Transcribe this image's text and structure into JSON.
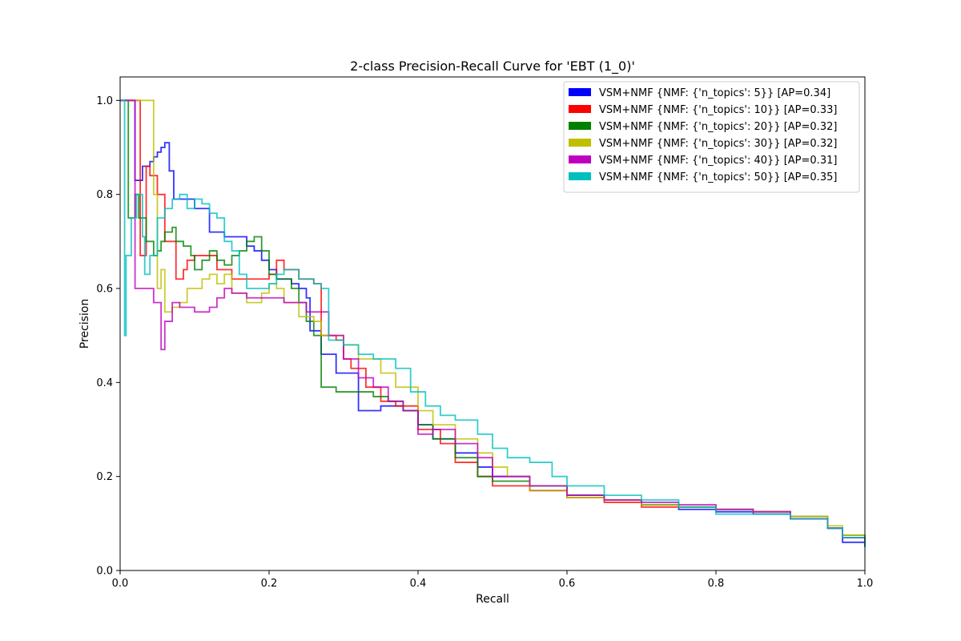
{
  "chart_data": {
    "type": "line",
    "title": "2-class Precision-Recall Curve for 'EBT (1_0)'",
    "xlabel": "Recall",
    "ylabel": "Precision",
    "xlim": [
      0.0,
      1.0
    ],
    "ylim": [
      0.0,
      1.05
    ],
    "xticks": [
      "0.0",
      "0.2",
      "0.4",
      "0.6",
      "0.8",
      "1.0"
    ],
    "yticks": [
      "0.0",
      "0.2",
      "0.4",
      "0.6",
      "0.8",
      "1.0"
    ],
    "grid": false,
    "legend_position": "top-right",
    "series": [
      {
        "name": "VSM+NMF {NMF: {'n_topics': 5}} [AP=0.34]",
        "color": "#0000ff",
        "points": [
          [
            0.0,
            1.0
          ],
          [
            0.02,
            1.0
          ],
          [
            0.02,
            0.83
          ],
          [
            0.03,
            0.83
          ],
          [
            0.03,
            0.86
          ],
          [
            0.04,
            0.86
          ],
          [
            0.04,
            0.87
          ],
          [
            0.045,
            0.88
          ],
          [
            0.05,
            0.89
          ],
          [
            0.055,
            0.9
          ],
          [
            0.06,
            0.9
          ],
          [
            0.06,
            0.91
          ],
          [
            0.066,
            0.91
          ],
          [
            0.066,
            0.85
          ],
          [
            0.072,
            0.85
          ],
          [
            0.072,
            0.79
          ],
          [
            0.09,
            0.79
          ],
          [
            0.1,
            0.77
          ],
          [
            0.12,
            0.76
          ],
          [
            0.12,
            0.72
          ],
          [
            0.14,
            0.72
          ],
          [
            0.14,
            0.71
          ],
          [
            0.17,
            0.69
          ],
          [
            0.18,
            0.68
          ],
          [
            0.19,
            0.67
          ],
          [
            0.19,
            0.66
          ],
          [
            0.2,
            0.64
          ],
          [
            0.21,
            0.62
          ],
          [
            0.23,
            0.61
          ],
          [
            0.24,
            0.6
          ],
          [
            0.25,
            0.6
          ],
          [
            0.25,
            0.58
          ],
          [
            0.255,
            0.58
          ],
          [
            0.255,
            0.51
          ],
          [
            0.27,
            0.51
          ],
          [
            0.27,
            0.46
          ],
          [
            0.29,
            0.46
          ],
          [
            0.29,
            0.42
          ],
          [
            0.31,
            0.42
          ],
          [
            0.32,
            0.41
          ],
          [
            0.32,
            0.34
          ],
          [
            0.35,
            0.35
          ],
          [
            0.37,
            0.35
          ],
          [
            0.38,
            0.34
          ],
          [
            0.4,
            0.31
          ],
          [
            0.42,
            0.28
          ],
          [
            0.45,
            0.25
          ],
          [
            0.48,
            0.22
          ],
          [
            0.5,
            0.2
          ],
          [
            0.55,
            0.17
          ],
          [
            0.6,
            0.16
          ],
          [
            0.65,
            0.15
          ],
          [
            0.7,
            0.14
          ],
          [
            0.75,
            0.13
          ],
          [
            0.8,
            0.125
          ],
          [
            0.85,
            0.12
          ],
          [
            0.9,
            0.11
          ],
          [
            0.95,
            0.09
          ],
          [
            0.97,
            0.08
          ],
          [
            0.97,
            0.06
          ],
          [
            1.0,
            0.05
          ]
        ]
      },
      {
        "name": "VSM+NMF {NMF: {'n_topics': 10}} [AP=0.33]",
        "color": "#ff0000",
        "points": [
          [
            0.0,
            1.0
          ],
          [
            0.027,
            1.0
          ],
          [
            0.027,
            0.67
          ],
          [
            0.035,
            0.67
          ],
          [
            0.035,
            0.86
          ],
          [
            0.04,
            0.86
          ],
          [
            0.04,
            0.84
          ],
          [
            0.05,
            0.84
          ],
          [
            0.05,
            0.8
          ],
          [
            0.06,
            0.8
          ],
          [
            0.06,
            0.7
          ],
          [
            0.075,
            0.7
          ],
          [
            0.075,
            0.62
          ],
          [
            0.08,
            0.62
          ],
          [
            0.085,
            0.64
          ],
          [
            0.09,
            0.66
          ],
          [
            0.1,
            0.67
          ],
          [
            0.12,
            0.67
          ],
          [
            0.13,
            0.64
          ],
          [
            0.15,
            0.62
          ],
          [
            0.17,
            0.62
          ],
          [
            0.2,
            0.63
          ],
          [
            0.21,
            0.66
          ],
          [
            0.22,
            0.64
          ],
          [
            0.24,
            0.62
          ],
          [
            0.26,
            0.61
          ],
          [
            0.27,
            0.61
          ],
          [
            0.27,
            0.5
          ],
          [
            0.29,
            0.49
          ],
          [
            0.3,
            0.45
          ],
          [
            0.31,
            0.43
          ],
          [
            0.33,
            0.39
          ],
          [
            0.35,
            0.36
          ],
          [
            0.37,
            0.35
          ],
          [
            0.4,
            0.3
          ],
          [
            0.43,
            0.27
          ],
          [
            0.45,
            0.23
          ],
          [
            0.48,
            0.2
          ],
          [
            0.5,
            0.18
          ],
          [
            0.55,
            0.17
          ],
          [
            0.6,
            0.155
          ],
          [
            0.65,
            0.145
          ],
          [
            0.7,
            0.135
          ],
          [
            0.75,
            0.135
          ],
          [
            0.8,
            0.13
          ],
          [
            0.85,
            0.125
          ],
          [
            0.9,
            0.11
          ],
          [
            0.95,
            0.09
          ],
          [
            0.97,
            0.07
          ],
          [
            1.0,
            0.06
          ]
        ]
      },
      {
        "name": "VSM+NMF {NMF: {'n_topics': 20}} [AP=0.32]",
        "color": "#008000",
        "points": [
          [
            0.0,
            1.0
          ],
          [
            0.011,
            1.0
          ],
          [
            0.011,
            0.75
          ],
          [
            0.02,
            0.75
          ],
          [
            0.02,
            0.8
          ],
          [
            0.025,
            0.8
          ],
          [
            0.025,
            0.75
          ],
          [
            0.035,
            0.7
          ],
          [
            0.045,
            0.67
          ],
          [
            0.05,
            0.68
          ],
          [
            0.055,
            0.7
          ],
          [
            0.06,
            0.72
          ],
          [
            0.07,
            0.73
          ],
          [
            0.075,
            0.7
          ],
          [
            0.085,
            0.69
          ],
          [
            0.095,
            0.67
          ],
          [
            0.1,
            0.64
          ],
          [
            0.11,
            0.66
          ],
          [
            0.12,
            0.68
          ],
          [
            0.13,
            0.66
          ],
          [
            0.14,
            0.65
          ],
          [
            0.15,
            0.67
          ],
          [
            0.16,
            0.68
          ],
          [
            0.17,
            0.7
          ],
          [
            0.18,
            0.71
          ],
          [
            0.19,
            0.68
          ],
          [
            0.2,
            0.63
          ],
          [
            0.21,
            0.62
          ],
          [
            0.23,
            0.6
          ],
          [
            0.24,
            0.57
          ],
          [
            0.25,
            0.53
          ],
          [
            0.26,
            0.5
          ],
          [
            0.27,
            0.5
          ],
          [
            0.27,
            0.39
          ],
          [
            0.28,
            0.39
          ],
          [
            0.29,
            0.38
          ],
          [
            0.3,
            0.38
          ],
          [
            0.32,
            0.38
          ],
          [
            0.34,
            0.37
          ],
          [
            0.36,
            0.36
          ],
          [
            0.38,
            0.34
          ],
          [
            0.4,
            0.31
          ],
          [
            0.42,
            0.28
          ],
          [
            0.45,
            0.24
          ],
          [
            0.48,
            0.2
          ],
          [
            0.5,
            0.19
          ],
          [
            0.55,
            0.18
          ],
          [
            0.6,
            0.16
          ],
          [
            0.65,
            0.15
          ],
          [
            0.7,
            0.14
          ],
          [
            0.75,
            0.135
          ],
          [
            0.8,
            0.13
          ],
          [
            0.85,
            0.125
          ],
          [
            0.9,
            0.115
          ],
          [
            0.95,
            0.09
          ],
          [
            0.97,
            0.075
          ],
          [
            1.0,
            0.055
          ]
        ]
      },
      {
        "name": "VSM+NMF {NMF: {'n_topics': 30}} [AP=0.32]",
        "color": "#bfbf00",
        "points": [
          [
            0.0,
            1.0
          ],
          [
            0.045,
            0.8
          ],
          [
            0.05,
            0.8
          ],
          [
            0.05,
            0.6
          ],
          [
            0.055,
            0.64
          ],
          [
            0.06,
            0.55
          ],
          [
            0.07,
            0.56
          ],
          [
            0.08,
            0.57
          ],
          [
            0.09,
            0.6
          ],
          [
            0.1,
            0.6
          ],
          [
            0.11,
            0.62
          ],
          [
            0.12,
            0.63
          ],
          [
            0.13,
            0.61
          ],
          [
            0.14,
            0.63
          ],
          [
            0.15,
            0.59
          ],
          [
            0.17,
            0.57
          ],
          [
            0.19,
            0.59
          ],
          [
            0.2,
            0.61
          ],
          [
            0.21,
            0.6
          ],
          [
            0.22,
            0.57
          ],
          [
            0.24,
            0.54
          ],
          [
            0.26,
            0.53
          ],
          [
            0.27,
            0.5
          ],
          [
            0.28,
            0.5
          ],
          [
            0.3,
            0.48
          ],
          [
            0.32,
            0.45
          ],
          [
            0.35,
            0.42
          ],
          [
            0.37,
            0.39
          ],
          [
            0.4,
            0.34
          ],
          [
            0.42,
            0.31
          ],
          [
            0.45,
            0.28
          ],
          [
            0.48,
            0.25
          ],
          [
            0.5,
            0.22
          ],
          [
            0.52,
            0.2
          ],
          [
            0.55,
            0.17
          ],
          [
            0.6,
            0.155
          ],
          [
            0.65,
            0.15
          ],
          [
            0.7,
            0.14
          ],
          [
            0.75,
            0.135
          ],
          [
            0.8,
            0.13
          ],
          [
            0.85,
            0.125
          ],
          [
            0.9,
            0.115
          ],
          [
            0.95,
            0.095
          ],
          [
            0.97,
            0.075
          ],
          [
            1.0,
            0.06
          ]
        ]
      },
      {
        "name": "VSM+NMF {NMF: {'n_topics': 40}} [AP=0.31]",
        "color": "#bf00bf",
        "points": [
          [
            0.0,
            1.0
          ],
          [
            0.02,
            1.0
          ],
          [
            0.02,
            0.6
          ],
          [
            0.035,
            0.6
          ],
          [
            0.035,
            0.6
          ],
          [
            0.045,
            0.57
          ],
          [
            0.055,
            0.47
          ],
          [
            0.06,
            0.53
          ],
          [
            0.07,
            0.57
          ],
          [
            0.08,
            0.56
          ],
          [
            0.1,
            0.55
          ],
          [
            0.12,
            0.56
          ],
          [
            0.13,
            0.58
          ],
          [
            0.14,
            0.6
          ],
          [
            0.15,
            0.59
          ],
          [
            0.17,
            0.58
          ],
          [
            0.2,
            0.58
          ],
          [
            0.22,
            0.57
          ],
          [
            0.25,
            0.55
          ],
          [
            0.28,
            0.5
          ],
          [
            0.3,
            0.45
          ],
          [
            0.32,
            0.41
          ],
          [
            0.34,
            0.39
          ],
          [
            0.36,
            0.36
          ],
          [
            0.38,
            0.34
          ],
          [
            0.4,
            0.29
          ],
          [
            0.42,
            0.3
          ],
          [
            0.45,
            0.27
          ],
          [
            0.48,
            0.24
          ],
          [
            0.5,
            0.2
          ],
          [
            0.55,
            0.18
          ],
          [
            0.6,
            0.16
          ],
          [
            0.65,
            0.15
          ],
          [
            0.7,
            0.145
          ],
          [
            0.75,
            0.14
          ],
          [
            0.8,
            0.13
          ],
          [
            0.85,
            0.125
          ],
          [
            0.9,
            0.11
          ],
          [
            0.95,
            0.09
          ],
          [
            0.97,
            0.07
          ],
          [
            1.0,
            0.06
          ]
        ]
      },
      {
        "name": "VSM+NMF {NMF: {'n_topics': 50}} [AP=0.35]",
        "color": "#00bfbf",
        "points": [
          [
            0.0,
            1.0
          ],
          [
            0.006,
            1.0
          ],
          [
            0.006,
            0.5
          ],
          [
            0.008,
            0.5
          ],
          [
            0.008,
            0.67
          ],
          [
            0.015,
            0.67
          ],
          [
            0.015,
            0.75
          ],
          [
            0.022,
            0.8
          ],
          [
            0.03,
            0.71
          ],
          [
            0.033,
            0.63
          ],
          [
            0.04,
            0.67
          ],
          [
            0.05,
            0.75
          ],
          [
            0.06,
            0.77
          ],
          [
            0.07,
            0.79
          ],
          [
            0.08,
            0.8
          ],
          [
            0.09,
            0.77
          ],
          [
            0.1,
            0.79
          ],
          [
            0.11,
            0.78
          ],
          [
            0.12,
            0.76
          ],
          [
            0.13,
            0.75
          ],
          [
            0.14,
            0.7
          ],
          [
            0.15,
            0.68
          ],
          [
            0.16,
            0.63
          ],
          [
            0.17,
            0.6
          ],
          [
            0.18,
            0.6
          ],
          [
            0.2,
            0.61
          ],
          [
            0.21,
            0.63
          ],
          [
            0.22,
            0.64
          ],
          [
            0.24,
            0.62
          ],
          [
            0.26,
            0.61
          ],
          [
            0.27,
            0.6
          ],
          [
            0.28,
            0.58
          ],
          [
            0.28,
            0.49
          ],
          [
            0.3,
            0.48
          ],
          [
            0.32,
            0.46
          ],
          [
            0.34,
            0.45
          ],
          [
            0.36,
            0.45
          ],
          [
            0.37,
            0.43
          ],
          [
            0.39,
            0.38
          ],
          [
            0.41,
            0.35
          ],
          [
            0.43,
            0.33
          ],
          [
            0.45,
            0.32
          ],
          [
            0.48,
            0.29
          ],
          [
            0.5,
            0.26
          ],
          [
            0.52,
            0.24
          ],
          [
            0.55,
            0.23
          ],
          [
            0.58,
            0.2
          ],
          [
            0.6,
            0.18
          ],
          [
            0.65,
            0.16
          ],
          [
            0.7,
            0.15
          ],
          [
            0.75,
            0.135
          ],
          [
            0.8,
            0.12
          ],
          [
            0.85,
            0.12
          ],
          [
            0.9,
            0.11
          ],
          [
            0.95,
            0.09
          ],
          [
            0.97,
            0.07
          ],
          [
            1.0,
            0.05
          ]
        ]
      }
    ]
  }
}
